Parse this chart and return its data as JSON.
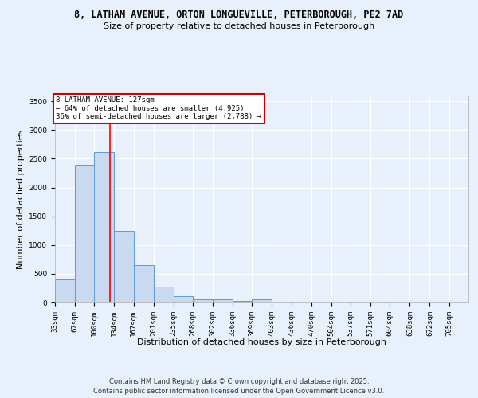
{
  "title1": "8, LATHAM AVENUE, ORTON LONGUEVILLE, PETERBOROUGH, PE2 7AD",
  "title2": "Size of property relative to detached houses in Peterborough",
  "xlabel": "Distribution of detached houses by size in Peterborough",
  "ylabel": "Number of detached properties",
  "bin_labels": [
    "33sqm",
    "67sqm",
    "100sqm",
    "134sqm",
    "167sqm",
    "201sqm",
    "235sqm",
    "268sqm",
    "302sqm",
    "336sqm",
    "369sqm",
    "403sqm",
    "436sqm",
    "470sqm",
    "504sqm",
    "537sqm",
    "571sqm",
    "604sqm",
    "638sqm",
    "672sqm",
    "705sqm"
  ],
  "bar_heights": [
    400,
    2400,
    2620,
    1250,
    650,
    280,
    110,
    60,
    50,
    30,
    50,
    0,
    0,
    0,
    0,
    0,
    0,
    0,
    0,
    0,
    0
  ],
  "bar_color": "#c9d9f0",
  "bar_edge_color": "#5b9bd5",
  "ylim": [
    0,
    3600
  ],
  "yticks": [
    0,
    500,
    1000,
    1500,
    2000,
    2500,
    3000,
    3500
  ],
  "red_line_x": 127,
  "bin_edges": [
    33,
    67,
    100,
    134,
    167,
    201,
    235,
    268,
    302,
    336,
    369,
    403,
    436,
    470,
    504,
    537,
    571,
    604,
    638,
    672,
    705,
    738
  ],
  "annotation_title": "8 LATHAM AVENUE: 127sqm",
  "annotation_line1": "← 64% of detached houses are smaller (4,925)",
  "annotation_line2": "36% of semi-detached houses are larger (2,788) →",
  "annotation_box_color": "#ffffff",
  "annotation_box_edge_color": "#cc0000",
  "footer1": "Contains HM Land Registry data © Crown copyright and database right 2025.",
  "footer2": "Contains public sector information licensed under the Open Government Licence v3.0.",
  "bg_color": "#e8f0fb",
  "plot_bg_color": "#e8f0fb",
  "title1_fontsize": 8.5,
  "title2_fontsize": 8,
  "xlabel_fontsize": 8,
  "ylabel_fontsize": 8,
  "tick_fontsize": 6.5,
  "footer_fontsize": 6
}
